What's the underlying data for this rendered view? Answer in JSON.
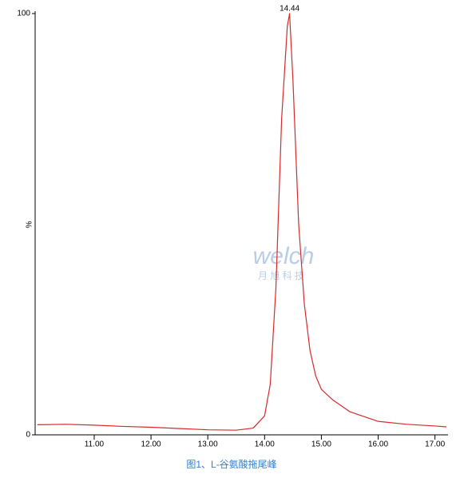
{
  "chart_data": {
    "type": "line",
    "xlabel": null,
    "ylabel": "%",
    "x": [
      10.0,
      10.5,
      11.0,
      11.5,
      12.0,
      12.5,
      13.0,
      13.5,
      13.8,
      14.0,
      14.1,
      14.2,
      14.3,
      14.4,
      14.44,
      14.5,
      14.6,
      14.7,
      14.8,
      14.9,
      15.0,
      15.2,
      15.5,
      16.0,
      16.5,
      17.0,
      17.2
    ],
    "series": [
      {
        "name": "L-glutamic acid",
        "color": "#d62a2a",
        "values": [
          2.4,
          2.5,
          2.3,
          2.0,
          1.8,
          1.5,
          1.2,
          1.1,
          1.6,
          4.5,
          12,
          35,
          75,
          97,
          100,
          84,
          50,
          31,
          20,
          14,
          10.8,
          8.3,
          5.5,
          3.2,
          2.5,
          2.1,
          1.9
        ]
      }
    ],
    "xlim": [
      9.96,
      17.23
    ],
    "xticks": [
      {
        "value": 11,
        "label": "11.00"
      },
      {
        "value": 12,
        "label": "12.00"
      },
      {
        "value": 13,
        "label": "13.00"
      },
      {
        "value": 14,
        "label": "14.00"
      },
      {
        "value": 15,
        "label": "15.00"
      },
      {
        "value": 16,
        "label": "16.00"
      },
      {
        "value": 17,
        "label": "17.00"
      }
    ],
    "ylim": [
      0,
      100
    ],
    "yticks": [
      0,
      100
    ],
    "annotations": [
      {
        "text": "14.44",
        "x": 14.44,
        "y": 100
      }
    ],
    "caption": "图1、L-谷氨酸拖尾峰",
    "watermark": "welch",
    "watermark_sub": "月 旭 科 技"
  }
}
